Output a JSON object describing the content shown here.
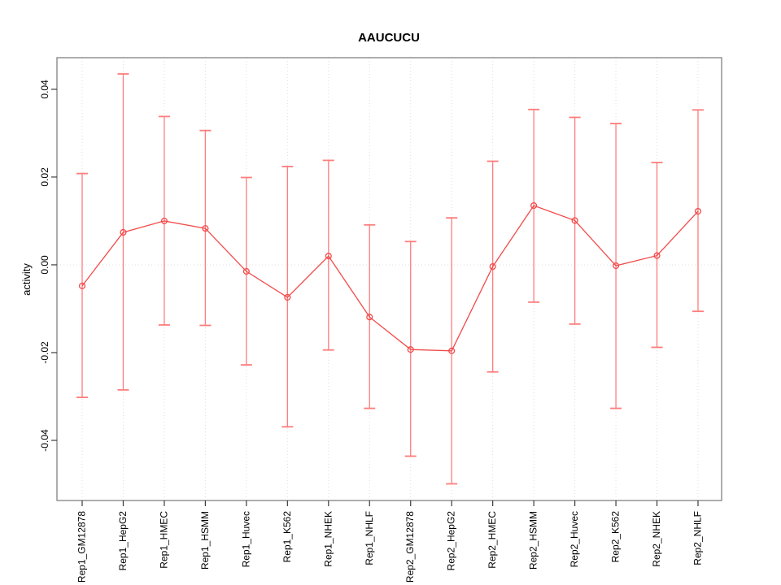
{
  "chart_data": {
    "type": "line",
    "title": "AAUCUCU",
    "xlabel": "",
    "ylabel": "activity",
    "categories": [
      "Rep1_GM12878",
      "Rep1_HepG2",
      "Rep1_HMEC",
      "Rep1_HSMM",
      "Rep1_Huvec",
      "Rep1_K562",
      "Rep1_NHEK",
      "Rep1_NHLF",
      "Rep2_GM12878",
      "Rep2_HepG2",
      "Rep2_HMEC",
      "Rep2_HSMM",
      "Rep2_Huvec",
      "Rep2_K562",
      "Rep2_NHEK",
      "Rep2_NHLF"
    ],
    "series": [
      {
        "name": "activity",
        "marker": "open-circle",
        "values": [
          -0.0048,
          0.0074,
          0.01,
          0.0083,
          -0.0015,
          -0.0074,
          0.002,
          -0.0119,
          -0.0193,
          -0.0196,
          -0.0004,
          0.0135,
          0.0101,
          -0.0002,
          0.0021,
          0.0122
        ],
        "error_low": [
          -0.0302,
          -0.0285,
          -0.0137,
          -0.0138,
          -0.0228,
          -0.0369,
          -0.0194,
          -0.0327,
          -0.0436,
          -0.0499,
          -0.0244,
          -0.0085,
          -0.0135,
          -0.0327,
          -0.0188,
          -0.0106
        ],
        "error_high": [
          0.0208,
          0.0435,
          0.0338,
          0.0306,
          0.0199,
          0.0224,
          0.0238,
          0.0091,
          0.0053,
          0.0107,
          0.0236,
          0.0354,
          0.0336,
          0.0322,
          0.0233,
          0.0353
        ]
      }
    ],
    "ylim": [
      -0.0537,
      0.0472
    ],
    "yticks": [
      -0.04,
      -0.02,
      0,
      0.02,
      0.04
    ],
    "ytick_labels": [
      "-0.04",
      "-0.02",
      "0.00",
      "0.02",
      "0.04"
    ],
    "legend": "none",
    "grid": {
      "horizontal_zero_line": "dotted",
      "vertical_line_per_category": "dotted"
    },
    "colors": {
      "line": "#f24a4a",
      "error_bar": "#ff7d7d",
      "grid": "#dedede",
      "box": "#8a8a8a",
      "tick": "#3c3c3c",
      "background": "#ffffff"
    }
  }
}
